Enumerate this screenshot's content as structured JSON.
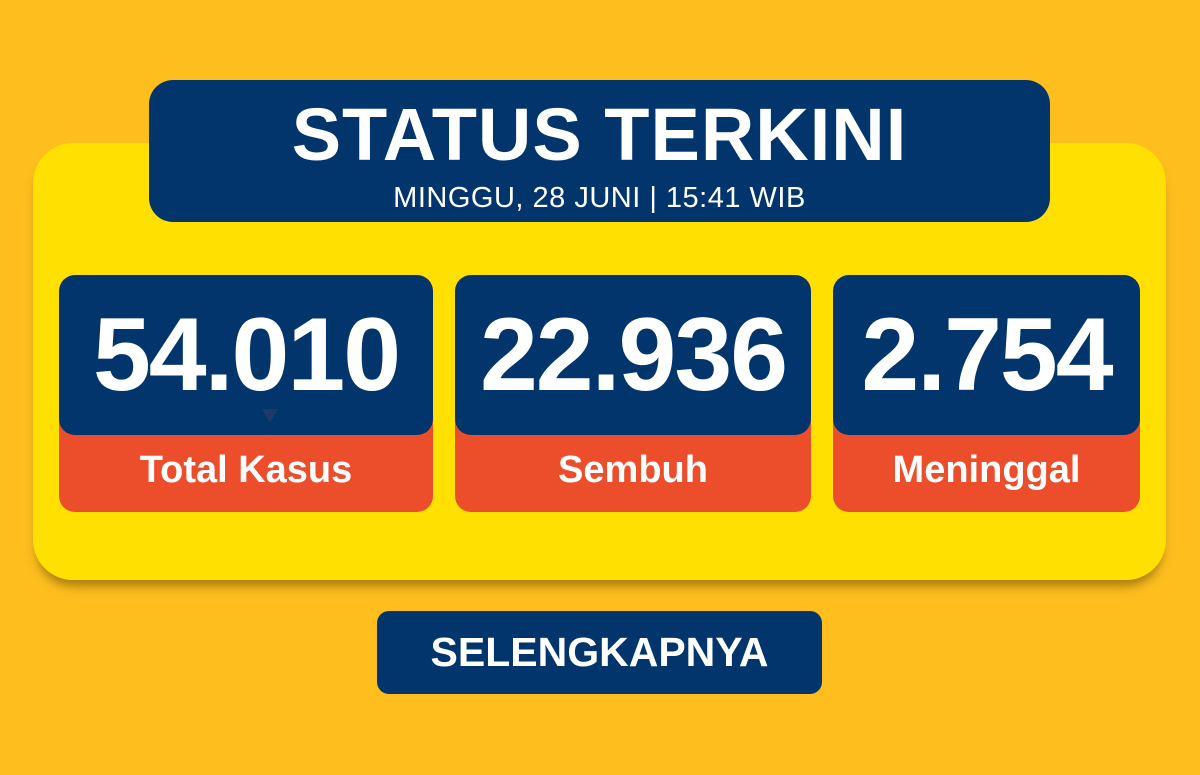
{
  "header": {
    "title": "STATUS TERKINI",
    "subtitle": "MINGGU, 28 JUNI | 15:41 WIB"
  },
  "stats": [
    {
      "value": "54.010",
      "label": "Total Kasus"
    },
    {
      "value": "22.936",
      "label": "Sembuh"
    },
    {
      "value": "2.754",
      "label": "Meninggal"
    }
  ],
  "button": {
    "label": "SELENGKAPNYA"
  },
  "colors": {
    "background": "#FDBE1E",
    "panel": "#FFE000",
    "navy": "#02356B",
    "orange": "#EC4E2C"
  }
}
